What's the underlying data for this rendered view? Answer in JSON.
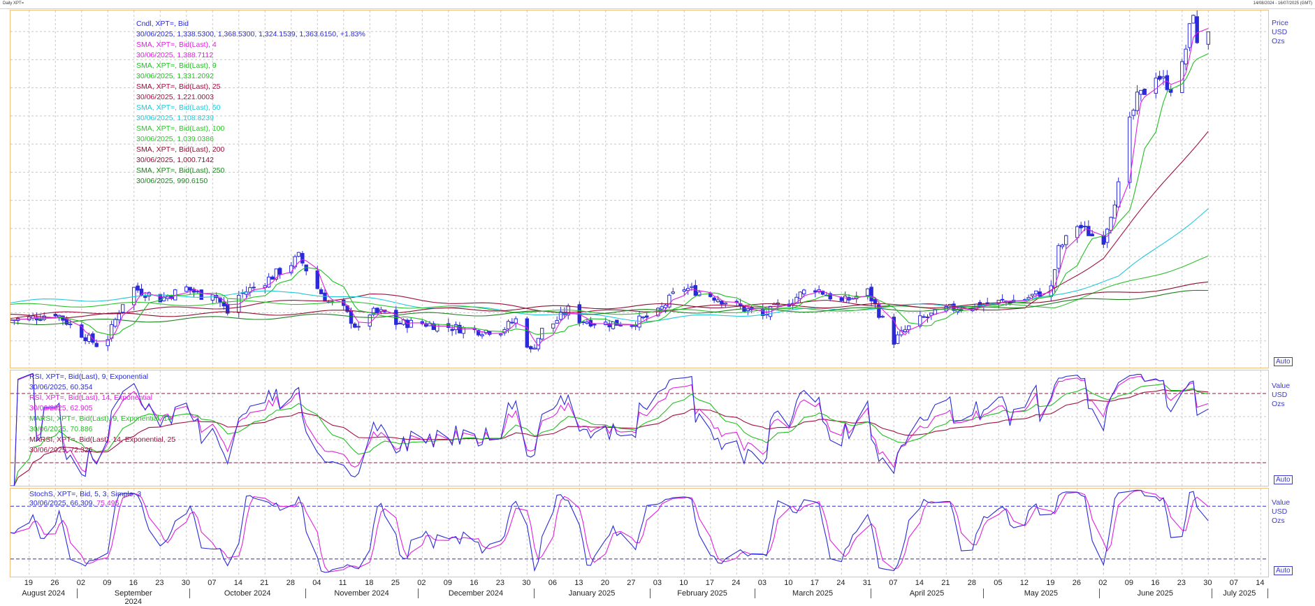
{
  "window": {
    "title_left": "Daily XPT=",
    "title_right": "14/08/2024 - 16/07/2025 (GMT)"
  },
  "colors": {
    "blue": "#2a2ad8",
    "pink": "#e020e0",
    "green": "#20c020",
    "maroon": "#a01040",
    "cyan": "#20c8d8",
    "green100": "#30c030",
    "maroon200": "#8a1030",
    "green250": "#208020",
    "rsi14": "#e020e0",
    "marsi9": "#20c020",
    "marsi14": "#a01040"
  },
  "panel_price": {
    "legend": [
      {
        "l1": "Cndl, XPT=, Bid",
        "l2": "30/06/2025, 1,338.5300, 1,368.5300, 1,324.1539, 1,363.6150, +1.83%",
        "color": "#2a2ad8"
      },
      {
        "l1": "SMA, XPT=, Bid(Last),  4",
        "l2": "30/06/2025, 1,388.7112",
        "color": "#e020e0"
      },
      {
        "l1": "SMA, XPT=, Bid(Last),  9",
        "l2": "30/06/2025, 1,331.2092",
        "color": "#20c020"
      },
      {
        "l1": "SMA, XPT=, Bid(Last),  25",
        "l2": "30/06/2025, 1,221.0003",
        "color": "#a01040"
      },
      {
        "l1": "SMA, XPT=, Bid(Last),  50",
        "l2": "30/06/2025, 1,108.8239",
        "color": "#20c8d8"
      },
      {
        "l1": "SMA, XPT=, Bid(Last),  100",
        "l2": "30/06/2025, 1,039.0386",
        "color": "#30c030"
      },
      {
        "l1": "SMA, XPT=, Bid(Last),  200",
        "l2": "30/06/2025, 1,000.7142",
        "color": "#8a1030"
      },
      {
        "l1": "SMA, XPT=, Bid(Last),  250",
        "l2": "30/06/2025, 990.6150",
        "color": "#208020"
      }
    ],
    "axis_title": [
      "Price",
      "USD",
      "Ozs"
    ],
    "auto_label": "Auto"
  },
  "panel_rsi": {
    "legend": [
      {
        "l1": "RSI, XPT=, Bid(Last),  9, Exponential",
        "l2": "30/06/2025, 60.354",
        "color": "#2a2ad8"
      },
      {
        "l1": "RSI, XPT=, Bid(Last),  14, Exponential",
        "l2": "30/06/2025, 62.905",
        "color": "#e020e0"
      },
      {
        "l1": "MARSI, XPT=, Bid(Last),  9, Exponential, 14",
        "l2": "30/06/2025, 70.886",
        "color": "#20c020"
      },
      {
        "l1": "MARSI, XPT=, Bid(Last),  14, Exponential, 25",
        "l2": "30/06/2025, 72.326",
        "color": "#a01040"
      }
    ],
    "axis_title": [
      "Value",
      "USD",
      "Ozs"
    ],
    "auto_label": "Auto"
  },
  "panel_stoch": {
    "legend": [
      {
        "l1": "StochS, XPT=, Bid,  5, 3, Simple, 3",
        "l2": "",
        "color": "#2a2ad8"
      },
      {
        "l1": "30/06/2025, 66.309, ",
        "l2": "75.495",
        "color": "#2a2ad8"
      }
    ],
    "axis_title": [
      "Value",
      "USD",
      "Ozs"
    ],
    "auto_label": "Auto"
  },
  "chart_data": [
    {
      "type": "line",
      "panel": "price",
      "title": "",
      "xlabel": "",
      "ylabel": "Price USD Ozs",
      "ylim": [
        882,
        1390
      ],
      "y_ticks": [
        920,
        960,
        1000,
        1040,
        1080,
        1120,
        1160,
        1200,
        1240,
        1280,
        1320,
        1360
      ],
      "x_range": [
        "2024-08-14",
        "2025-07-16"
      ],
      "candles_close_anchors": [
        [
          "2024-08-14",
          950
        ],
        [
          "2024-08-19",
          952
        ],
        [
          "2024-08-26",
          960
        ],
        [
          "2024-09-02",
          930
        ],
        [
          "2024-09-06",
          915
        ],
        [
          "2024-09-09",
          925
        ],
        [
          "2024-09-13",
          975
        ],
        [
          "2024-09-16",
          995
        ],
        [
          "2024-09-23",
          980
        ],
        [
          "2024-09-30",
          995
        ],
        [
          "2024-10-04",
          985
        ],
        [
          "2024-10-07",
          990
        ],
        [
          "2024-10-11",
          960
        ],
        [
          "2024-10-14",
          985
        ],
        [
          "2024-10-21",
          1005
        ],
        [
          "2024-10-28",
          1030
        ],
        [
          "2024-10-30",
          1040
        ],
        [
          "2024-11-04",
          995
        ],
        [
          "2024-11-07",
          975
        ],
        [
          "2024-11-11",
          965
        ],
        [
          "2024-11-15",
          935
        ],
        [
          "2024-11-18",
          960
        ],
        [
          "2024-11-22",
          960
        ],
        [
          "2024-11-25",
          945
        ],
        [
          "2024-12-02",
          945
        ],
        [
          "2024-12-09",
          940
        ],
        [
          "2024-12-16",
          935
        ],
        [
          "2024-12-23",
          935
        ],
        [
          "2024-12-27",
          950
        ],
        [
          "2024-12-31",
          905
        ],
        [
          "2025-01-03",
          935
        ],
        [
          "2025-01-06",
          945
        ],
        [
          "2025-01-10",
          965
        ],
        [
          "2025-01-13",
          950
        ],
        [
          "2025-01-20",
          945
        ],
        [
          "2025-01-27",
          945
        ],
        [
          "2025-02-03",
          960
        ],
        [
          "2025-02-07",
          985
        ],
        [
          "2025-02-10",
          995
        ],
        [
          "2025-02-14",
          990
        ],
        [
          "2025-02-17",
          985
        ],
        [
          "2025-02-24",
          970
        ],
        [
          "2025-03-03",
          955
        ],
        [
          "2025-03-07",
          970
        ],
        [
          "2025-03-10",
          975
        ],
        [
          "2025-03-14",
          990
        ],
        [
          "2025-03-17",
          995
        ],
        [
          "2025-03-24",
          975
        ],
        [
          "2025-03-31",
          990
        ],
        [
          "2025-04-03",
          960
        ],
        [
          "2025-04-07",
          920
        ],
        [
          "2025-04-10",
          935
        ],
        [
          "2025-04-14",
          950
        ],
        [
          "2025-04-21",
          965
        ],
        [
          "2025-04-28",
          970
        ],
        [
          "2025-05-05",
          975
        ],
        [
          "2025-05-12",
          980
        ],
        [
          "2025-05-19",
          995
        ],
        [
          "2025-05-21",
          1050
        ],
        [
          "2025-05-26",
          1085
        ],
        [
          "2025-05-30",
          1070
        ],
        [
          "2025-06-02",
          1065
        ],
        [
          "2025-06-06",
          1140
        ],
        [
          "2025-06-09",
          1230
        ],
        [
          "2025-06-11",
          1265
        ],
        [
          "2025-06-13",
          1275
        ],
        [
          "2025-06-16",
          1300
        ],
        [
          "2025-06-20",
          1280
        ],
        [
          "2025-06-23",
          1310
        ],
        [
          "2025-06-26",
          1390
        ],
        [
          "2025-06-27",
          1338
        ],
        [
          "2025-06-30",
          1363.615
        ]
      ],
      "series": [
        {
          "name": "SMA, XPT=, Bid(Last),  4",
          "last": 1388.7112
        },
        {
          "name": "SMA, XPT=, Bid(Last),  9",
          "last": 1331.2092
        },
        {
          "name": "SMA, XPT=, Bid(Last),  25",
          "last": 1221.0003,
          "anchors": [
            [
              "2024-08-14",
              955
            ],
            [
              "2024-10-15",
              970
            ],
            [
              "2024-11-18",
              985
            ],
            [
              "2025-01-15",
              960
            ],
            [
              "2025-03-20",
              975
            ],
            [
              "2025-05-12",
              965
            ],
            [
              "2025-06-02",
              1040
            ],
            [
              "2025-06-30",
              1221
            ]
          ]
        },
        {
          "name": "SMA, XPT=, Bid(Last),  50",
          "last": 1108.8239,
          "anchors": [
            [
              "2024-08-14",
              975
            ],
            [
              "2024-10-30",
              990
            ],
            [
              "2024-12-02",
              970
            ],
            [
              "2025-02-01",
              950
            ],
            [
              "2025-03-20",
              965
            ],
            [
              "2025-05-12",
              975
            ],
            [
              "2025-06-06",
              1010
            ],
            [
              "2025-06-30",
              1109
            ]
          ]
        },
        {
          "name": "SMA, XPT=, Bid(Last),  100",
          "last": 1039.0386,
          "anchors": [
            [
              "2024-08-14",
              970
            ],
            [
              "2024-11-01",
              975
            ],
            [
              "2025-01-15",
              960
            ],
            [
              "2025-03-20",
              965
            ],
            [
              "2025-05-20",
              970
            ],
            [
              "2025-06-30",
              1039
            ]
          ]
        },
        {
          "name": "SMA, XPT=, Bid(Last),  200",
          "last": 1000.7142,
          "anchors": [
            [
              "2024-08-14",
              955
            ],
            [
              "2024-11-01",
              960
            ],
            [
              "2025-02-01",
              970
            ],
            [
              "2025-05-01",
              970
            ],
            [
              "2025-06-30",
              1001
            ]
          ]
        },
        {
          "name": "SMA, XPT=, Bid(Last),  250",
          "last": 990.615,
          "anchors": [
            [
              "2024-08-14",
              945
            ],
            [
              "2024-11-01",
              955
            ],
            [
              "2025-02-01",
              962
            ],
            [
              "2025-05-01",
              966
            ],
            [
              "2025-06-30",
              990.6
            ]
          ]
        }
      ]
    },
    {
      "type": "line",
      "panel": "rsi",
      "title": "",
      "ylim": [
        0,
        100
      ],
      "y_ticks": [
        20,
        40,
        60
      ],
      "hlines": [
        20,
        80
      ],
      "series": [
        {
          "name": "RSI, XPT=, Bid(Last),  9, Exponential",
          "last": 60.354
        },
        {
          "name": "RSI, XPT=, Bid(Last),  14, Exponential",
          "last": 62.905
        },
        {
          "name": "MARSI, XPT=, Bid(Last),  9, Exponential, 14",
          "last": 70.886
        },
        {
          "name": "MARSI, XPT=, Bid(Last),  14, Exponential, 25",
          "last": 72.326
        }
      ]
    },
    {
      "type": "line",
      "panel": "stoch",
      "title": "",
      "ylim": [
        0,
        100
      ],
      "y_ticks": [
        30
      ],
      "hlines": [
        20,
        80
      ],
      "series": [
        {
          "name": "StochS, XPT=, Bid,  5, 3, Simple, 3 (%K)",
          "last": 66.309
        },
        {
          "name": "StochS, XPT=, Bid,  5, 3, Simple, 3 (%D)",
          "last": 75.495
        }
      ]
    }
  ],
  "x_axis": {
    "day_ticks": [
      [
        "2024-08-19",
        "19"
      ],
      [
        "2024-08-26",
        "26"
      ],
      [
        "2024-09-02",
        "02"
      ],
      [
        "2024-09-09",
        "09"
      ],
      [
        "2024-09-16",
        "16"
      ],
      [
        "2024-09-23",
        "23"
      ],
      [
        "2024-09-30",
        "30"
      ],
      [
        "2024-10-07",
        "07"
      ],
      [
        "2024-10-14",
        "14"
      ],
      [
        "2024-10-21",
        "21"
      ],
      [
        "2024-10-28",
        "28"
      ],
      [
        "2024-11-04",
        "04"
      ],
      [
        "2024-11-11",
        "11"
      ],
      [
        "2024-11-18",
        "18"
      ],
      [
        "2024-11-25",
        "25"
      ],
      [
        "2024-12-02",
        "02"
      ],
      [
        "2024-12-09",
        "09"
      ],
      [
        "2024-12-16",
        "16"
      ],
      [
        "2024-12-23",
        "23"
      ],
      [
        "2024-12-30",
        "30"
      ],
      [
        "2025-01-06",
        "06"
      ],
      [
        "2025-01-13",
        "13"
      ],
      [
        "2025-01-20",
        "20"
      ],
      [
        "2025-01-27",
        "27"
      ],
      [
        "2025-02-03",
        "03"
      ],
      [
        "2025-02-10",
        "10"
      ],
      [
        "2025-02-17",
        "17"
      ],
      [
        "2025-02-24",
        "24"
      ],
      [
        "2025-03-03",
        "03"
      ],
      [
        "2025-03-10",
        "10"
      ],
      [
        "2025-03-17",
        "17"
      ],
      [
        "2025-03-24",
        "24"
      ],
      [
        "2025-03-31",
        "31"
      ],
      [
        "2025-04-07",
        "07"
      ],
      [
        "2025-04-14",
        "14"
      ],
      [
        "2025-04-21",
        "21"
      ],
      [
        "2025-04-28",
        "28"
      ],
      [
        "2025-05-05",
        "05"
      ],
      [
        "2025-05-12",
        "12"
      ],
      [
        "2025-05-19",
        "19"
      ],
      [
        "2025-05-26",
        "26"
      ],
      [
        "2025-06-02",
        "02"
      ],
      [
        "2025-06-09",
        "09"
      ],
      [
        "2025-06-16",
        "16"
      ],
      [
        "2025-06-23",
        "23"
      ],
      [
        "2025-06-30",
        "30"
      ],
      [
        "2025-07-07",
        "07"
      ],
      [
        "2025-07-14",
        "14"
      ]
    ],
    "months": [
      [
        "2024-08-14",
        "2024-09-01",
        "August 2024"
      ],
      [
        "2024-09-01",
        "2024-10-01",
        "September 2024"
      ],
      [
        "2024-10-01",
        "2024-11-01",
        "October 2024"
      ],
      [
        "2024-11-01",
        "2024-12-01",
        "November 2024"
      ],
      [
        "2024-12-01",
        "2025-01-01",
        "December 2024"
      ],
      [
        "2025-01-01",
        "2025-02-01",
        "January 2025"
      ],
      [
        "2025-02-01",
        "2025-03-01",
        "February 2025"
      ],
      [
        "2025-03-01",
        "2025-04-01",
        "March 2025"
      ],
      [
        "2025-04-01",
        "2025-05-01",
        "April 2025"
      ],
      [
        "2025-05-01",
        "2025-06-01",
        "May 2025"
      ],
      [
        "2025-06-01",
        "2025-07-01",
        "June 2025"
      ],
      [
        "2025-07-01",
        "2025-07-16",
        "July 2025"
      ]
    ]
  }
}
